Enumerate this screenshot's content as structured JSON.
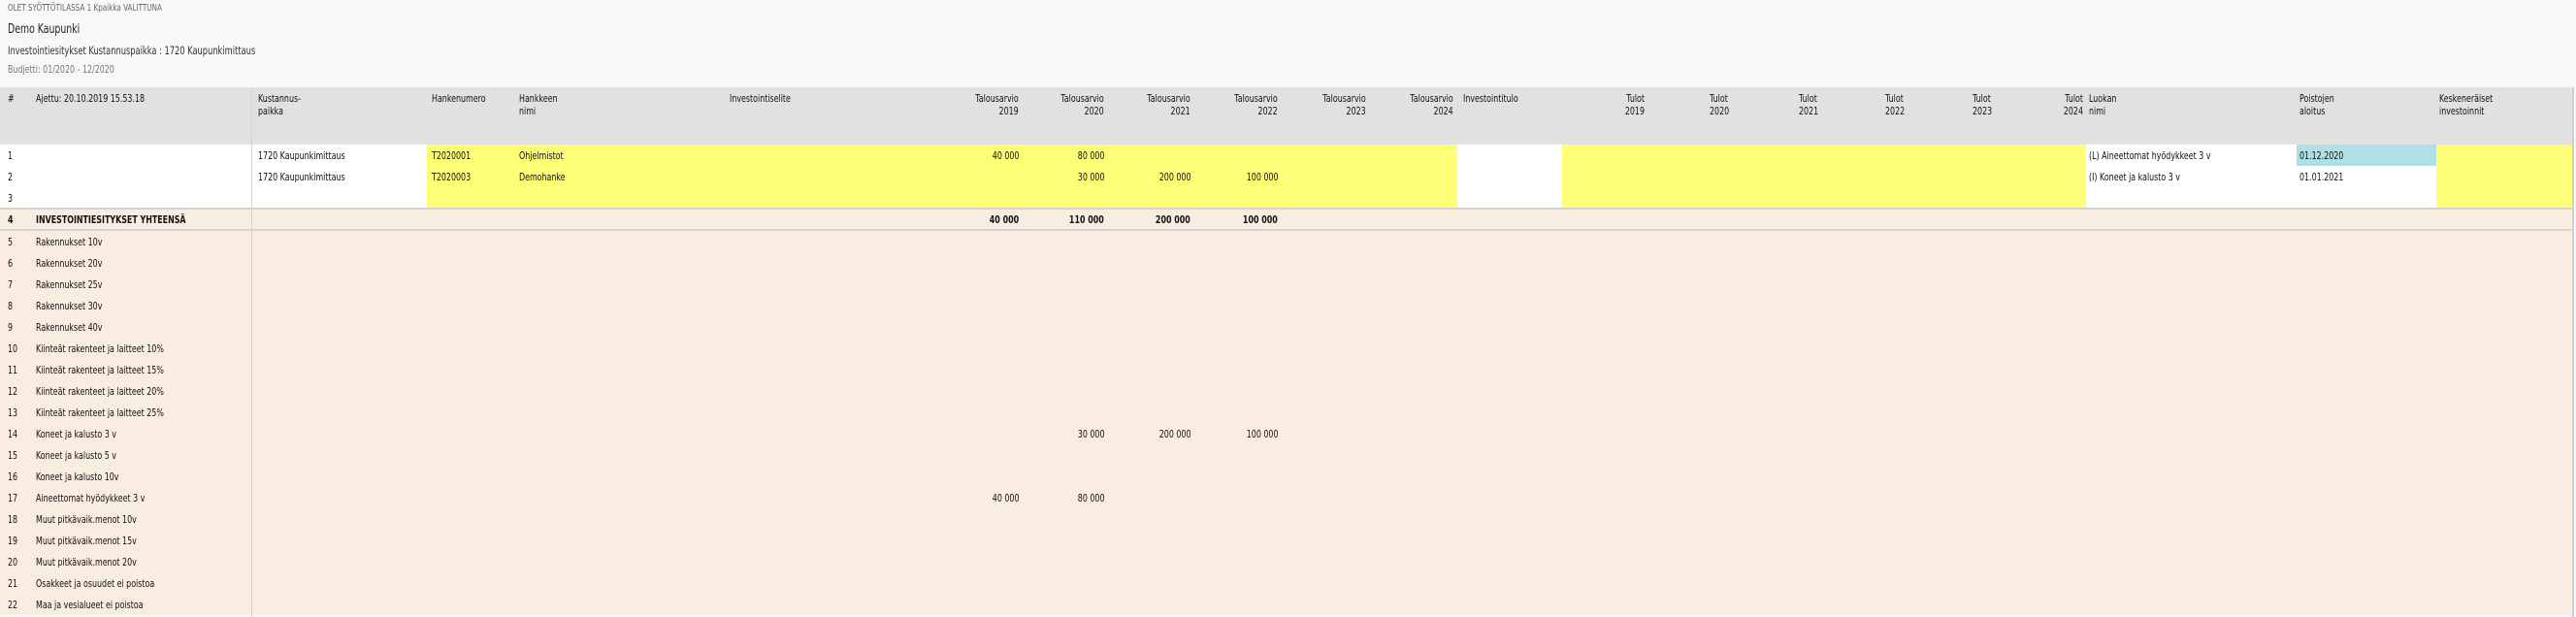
{
  "top": {
    "mode_text": "OLET SYÖTTÖTILASSA 1 Kpaikka VALITTUNA",
    "organization": "Demo Kaupunki",
    "report_title": "Investointiesitykset Kustannuspaikka : 1720 Kaupunkimittaus",
    "budget_period": "Budjetti: 01/2020 - 12/2020"
  },
  "columns": [
    {
      "key": "num",
      "label": "#"
    },
    {
      "key": "name",
      "label": "Ajettu: 20.10.2019 15.53.18"
    },
    {
      "key": "kp",
      "label": "Kustannus-\npaikka"
    },
    {
      "key": "hnro",
      "label": "Hankenumero"
    },
    {
      "key": "hnimi",
      "label": "Hankkeen\nnimi"
    },
    {
      "key": "selite",
      "label": "Investointiselite"
    },
    {
      "key": "ta2019",
      "label": "Talousarvio\n2019"
    },
    {
      "key": "ta2020",
      "label": "Talousarvio\n2020"
    },
    {
      "key": "ta2021",
      "label": "Talousarvio\n2021"
    },
    {
      "key": "ta2022",
      "label": "Talousarvio\n2022"
    },
    {
      "key": "ta2023",
      "label": "Talousarvio\n2023"
    },
    {
      "key": "ta2024",
      "label": "Talousarvio\n2024"
    },
    {
      "key": "tulo",
      "label": "Investointitulo"
    },
    {
      "key": "tu2019",
      "label": "Tulot\n2019"
    },
    {
      "key": "tu2020",
      "label": "Tulot\n2020"
    },
    {
      "key": "tu2021",
      "label": "Tulot\n2021"
    },
    {
      "key": "tu2022",
      "label": "Tulot\n2022"
    },
    {
      "key": "tu2023",
      "label": "Tulot\n2023"
    },
    {
      "key": "tu2024",
      "label": "Tulot\n2024"
    },
    {
      "key": "luokka",
      "label": "Luokan\nnimi"
    },
    {
      "key": "poisto",
      "label": "Poistojen\naloitus"
    },
    {
      "key": "kesk",
      "label": "Keskeneräiset\ninvestoinnit"
    }
  ],
  "input_rows": [
    {
      "num": "1",
      "kp": "1720 Kaupunkimittaus",
      "hnro": "T2020001",
      "hnimi": "Ohjelmistot",
      "ta2019": "40 000",
      "ta2020": "80 000",
      "luokka": "(L) Aineettomat hyödykkeet 3 v",
      "poisto": "01.12.2020",
      "poisto_selected": true
    },
    {
      "num": "2",
      "kp": "1720 Kaupunkimittaus",
      "hnro": "T2020003",
      "hnimi": "Demohanke",
      "ta2020": "30 000",
      "ta2021": "200 000",
      "ta2022": "100 000",
      "luokka": "(I) Koneet ja kalusto 3 v",
      "poisto": "01.01.2021"
    },
    {
      "num": "3"
    }
  ],
  "total_row": {
    "num": "4",
    "name": "INVESTOINTIESITYKSET YHTEENSÄ",
    "ta2019": "40 000",
    "ta2020": "110 000",
    "ta2021": "200 000",
    "ta2022": "100 000"
  },
  "summary_rows": [
    {
      "num": "5",
      "name": "Rakennukset 10v"
    },
    {
      "num": "6",
      "name": "Rakennukset 20v"
    },
    {
      "num": "7",
      "name": "Rakennukset 25v"
    },
    {
      "num": "8",
      "name": "Rakennukset 30v"
    },
    {
      "num": "9",
      "name": "Rakennukset 40v"
    },
    {
      "num": "10",
      "name": "Kiinteät rakenteet ja laitteet 10%"
    },
    {
      "num": "11",
      "name": "Kiinteät rakenteet ja laitteet 15%"
    },
    {
      "num": "12",
      "name": "Kiinteät rakenteet ja laitteet 20%"
    },
    {
      "num": "13",
      "name": "Kiinteät rakenteet ja laitteet 25%"
    },
    {
      "num": "14",
      "name": "Koneet ja kalusto 3 v",
      "ta2020": "30 000",
      "ta2021": "200 000",
      "ta2022": "100 000"
    },
    {
      "num": "15",
      "name": "Koneet ja kalusto 5 v"
    },
    {
      "num": "16",
      "name": "Koneet ja kalusto 10v"
    },
    {
      "num": "17",
      "name": "Aineettomat hyödykkeet 3 v",
      "ta2019": "40 000",
      "ta2020": "80 000"
    },
    {
      "num": "18",
      "name": "Muut pitkävaik.menot 10v"
    },
    {
      "num": "19",
      "name": "Muut pitkävaik.menot 15v"
    },
    {
      "num": "20",
      "name": "Muut pitkävaik.menot 20v"
    },
    {
      "num": "21",
      "name": "Osakkeet ja osuudet ei poistoa"
    },
    {
      "num": "22",
      "name": "Maa ja vesialueet ei poistoa"
    }
  ],
  "colors": {
    "input_cell": "#ffff77",
    "selected_cell": "#b0e0e6",
    "summary_bg": "#f9ece1",
    "header_bg": "#e1e1df"
  }
}
